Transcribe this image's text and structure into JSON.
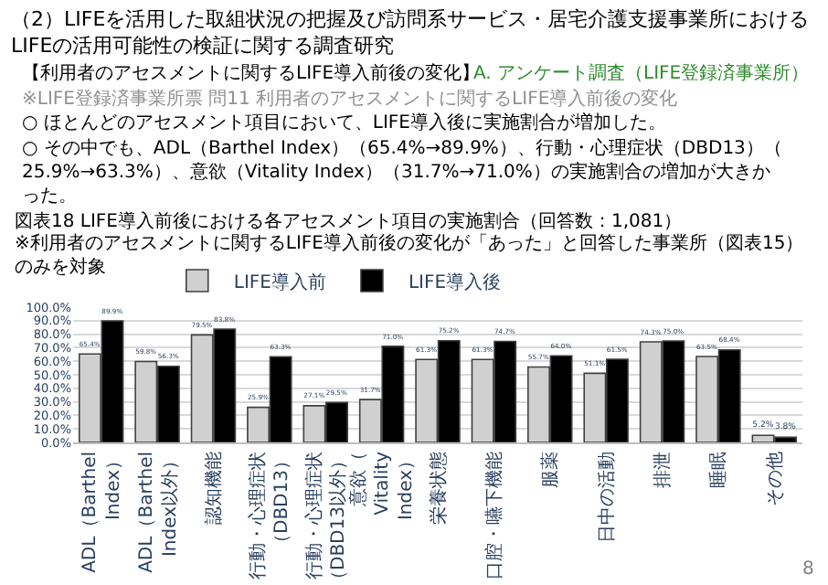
{
  "chart_data": {
    "type": "bar",
    "title": "（2）LIFEを活用した取組状況の把握及び訪問系サービス・居宅介護支援事業所における\nLIFEの活用可能性の検証に関する調査研究",
    "subtitle": "図表18 LIFE導入前後における各アセスメント項目の実施割合（回答数：1,081）",
    "annotations": [
      "A. アンケート調査（LIFE登録済事業所）",
      "【利用者のアセスメントに関するLIFE導入前後の変化】",
      "※LIFE登録済事業所票 問11 利用者のアセスメントに関するLIFE導入前後の変化",
      "○ ほとんどのアセスメント項目において、LIFE導入後に実施割合が増加した。",
      "○ その中でも、ADL（Barthel Index）（65.4%→89.9%）、行動・心理症状（DBD13）（25.9%→63.3%）、意欲（Vitality Index）（31.7%→71.0%）の実施割合の増加が大きかった。",
      "※利用者のアセスメントに関するLIFE導入前後の変化が「あった」と回答した事業所（図表15）のみを対象",
      "8"
    ],
    "categories": [
      "ADL（Barthel Index）",
      "ADL（Barthel Index以外）",
      "認知機能",
      "行動・心理症状（DBD13）",
      "行動・心理症状（DBD13以外）",
      "意欲（Vitality Index）",
      "栄養状態",
      "口腔・嚥下機能",
      "服薬",
      "日中の活動",
      "排泄",
      "睡眠",
      "その他"
    ],
    "series": [
      {
        "name": "LIFE導入前",
        "color": "#d0d0d0",
        "values": [
          65.4,
          59.8,
          79.5,
          25.9,
          27.1,
          31.7,
          61.3,
          61.3,
          55.7,
          51.1,
          74.3,
          63.5,
          5.2
        ],
        "value_labels": [
          "65.4%",
          "59.8%",
          "79.5%",
          "25.9%",
          "27.1%",
          "31.7%",
          "61.3%",
          "61.3%",
          "55.7%",
          "51.1%",
          "74.3%",
          "63.5%",
          "5.2%"
        ]
      },
      {
        "name": "LIFE導入後",
        "color": "#000000",
        "values": [
          89.9,
          56.3,
          83.8,
          63.3,
          29.5,
          71.0,
          75.2,
          74.7,
          64.0,
          61.5,
          75.0,
          68.4,
          3.8
        ],
        "value_labels": [
          "89.9%",
          "56.3%",
          "83.8%",
          "63.3%",
          "29.5%",
          "71.0%",
          "75.2%",
          "74.7%",
          "64.0%",
          "61.5%",
          "75.0%",
          "68.4%",
          "3.8%"
        ]
      }
    ],
    "ylim": [
      0,
      100
    ],
    "yticks": [
      {
        "value": 0,
        "label": "0.0%"
      },
      {
        "value": 10,
        "label": "10.0%"
      },
      {
        "value": 20,
        "label": "20.0%"
      },
      {
        "value": 30,
        "label": "30.0%"
      },
      {
        "value": 40,
        "label": "40.0%"
      },
      {
        "value": 50,
        "label": "50.0%"
      },
      {
        "value": 60,
        "label": "60.0%"
      },
      {
        "value": 70,
        "label": "70.0%"
      },
      {
        "value": 80,
        "label": "80.0%"
      },
      {
        "value": 90,
        "label": "90.0%"
      },
      {
        "value": 100,
        "label": "100.0%"
      }
    ],
    "grid": "y",
    "legend": "top left"
  }
}
